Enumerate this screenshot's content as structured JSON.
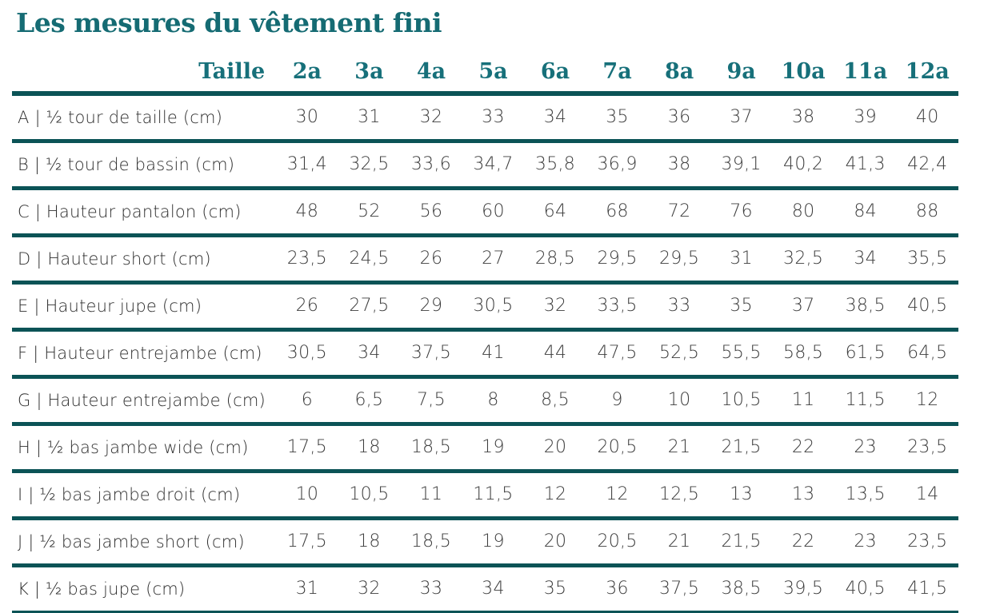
{
  "page": {
    "title": "Les mesures du vêtement fini"
  },
  "colors": {
    "accent_teal_text": "#156b73",
    "separator_line_teal": "#0b5356",
    "body_text": "#3d3d3d"
  },
  "table": {
    "size_header_label": "Taille",
    "sizes": [
      "2a",
      "3a",
      "4a",
      "5a",
      "6a",
      "7a",
      "8a",
      "9a",
      "10a",
      "11a",
      "12a"
    ],
    "rows": [
      {
        "label": "A | ½ tour de taille (cm)",
        "values": [
          "30",
          "31",
          "32",
          "33",
          "34",
          "35",
          "36",
          "37",
          "38",
          "39",
          "40"
        ]
      },
      {
        "label": "B | ½ tour de bassin (cm)",
        "values": [
          "31,4",
          "32,5",
          "33,6",
          "34,7",
          "35,8",
          "36,9",
          "38",
          "39,1",
          "40,2",
          "41,3",
          "42,4"
        ]
      },
      {
        "label": "C | Hauteur pantalon (cm)",
        "values": [
          "48",
          "52",
          "56",
          "60",
          "64",
          "68",
          "72",
          "76",
          "80",
          "84",
          "88"
        ]
      },
      {
        "label": "D | Hauteur short (cm)",
        "values": [
          "23,5",
          "24,5",
          "26",
          "27",
          "28,5",
          "29,5",
          "29,5",
          "31",
          "32,5",
          "34",
          "35,5"
        ]
      },
      {
        "label": "E | Hauteur jupe (cm)",
        "values": [
          "26",
          "27,5",
          "29",
          "30,5",
          "32",
          "33,5",
          "33",
          "35",
          "37",
          "38,5",
          "40,5"
        ]
      },
      {
        "label": "F | Hauteur entrejambe (cm)",
        "values": [
          "30,5",
          "34",
          "37,5",
          "41",
          "44",
          "47,5",
          "52,5",
          "55,5",
          "58,5",
          "61,5",
          "64,5"
        ]
      },
      {
        "label": "G | Hauteur entrejambe (cm)",
        "values": [
          "6",
          "6,5",
          "7,5",
          "8",
          "8,5",
          "9",
          "10",
          "10,5",
          "11",
          "11,5",
          "12"
        ]
      },
      {
        "label": "H | ½ bas jambe wide (cm)",
        "values": [
          "17,5",
          "18",
          "18,5",
          "19",
          "20",
          "20,5",
          "21",
          "21,5",
          "22",
          "23",
          "23,5"
        ]
      },
      {
        "label": "I | ½ bas jambe droit (cm)",
        "values": [
          "10",
          "10,5",
          "11",
          "11,5",
          "12",
          "12",
          "12,5",
          "13",
          "13",
          "13,5",
          "14"
        ]
      },
      {
        "label": "J | ½ bas jambe short (cm)",
        "values": [
          "17,5",
          "18",
          "18,5",
          "19",
          "20",
          "20,5",
          "21",
          "21,5",
          "22",
          "23",
          "23,5"
        ]
      },
      {
        "label": "K | ½ bas jupe (cm)",
        "values": [
          "31",
          "32",
          "33",
          "34",
          "35",
          "36",
          "37,5",
          "38,5",
          "39,5",
          "40,5",
          "41,5"
        ]
      }
    ]
  }
}
